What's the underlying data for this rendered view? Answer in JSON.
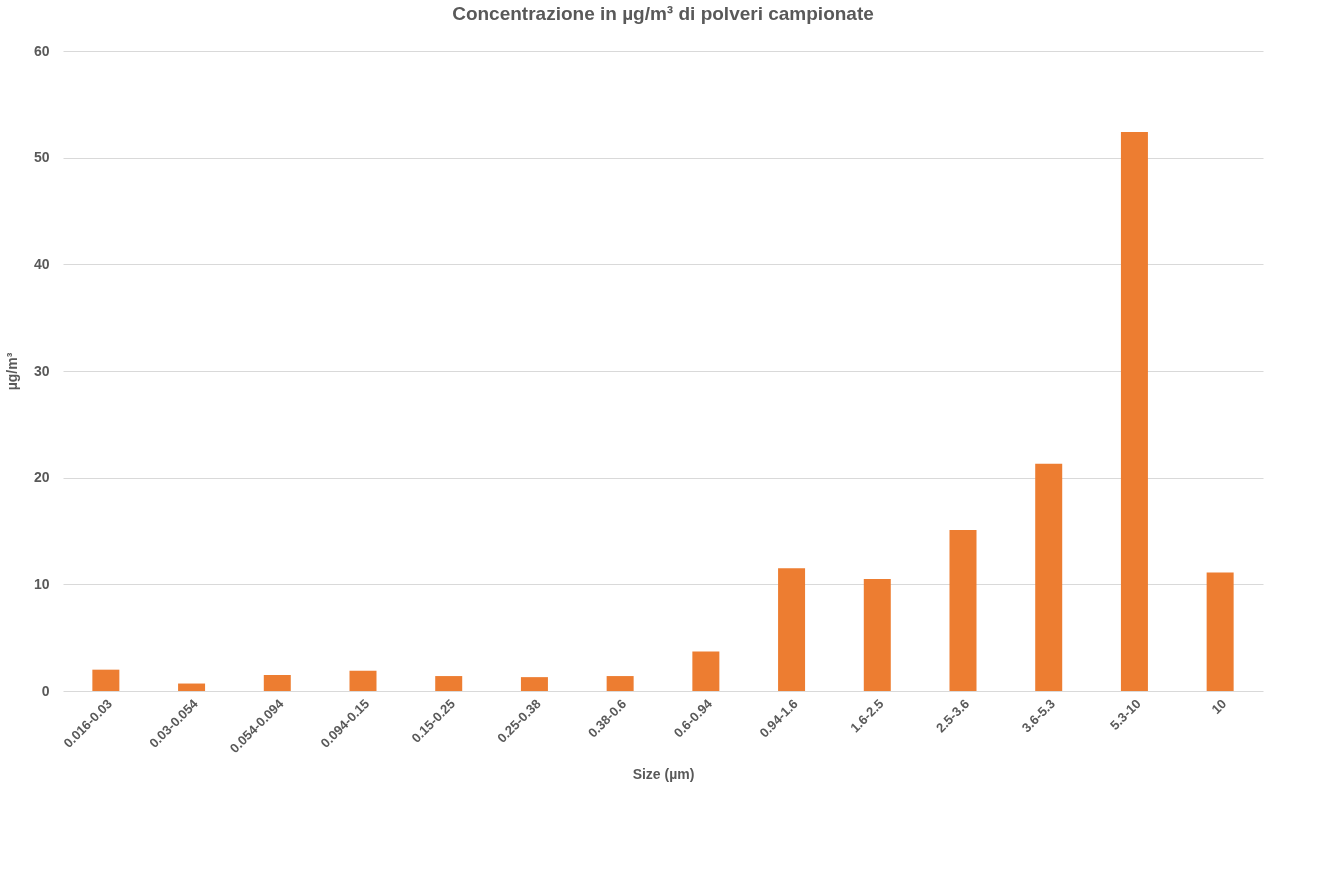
{
  "chart_data": {
    "type": "bar",
    "title": "Concentrazione in µg/m³ di polveri campionate",
    "xlabel": "Size (µm)",
    "ylabel": "µg/m³",
    "categories": [
      "0.016-0.03",
      "0.03-0.054",
      "0.054-0.094",
      "0.094-0.15",
      "0.15-0.25",
      "0.25-0.38",
      "0.38-0.6",
      "0.6-0.94",
      "0.94-1.6",
      "1.6-2.5",
      "2.5-3.6",
      "3.6-5.3",
      "5.3-10",
      "10"
    ],
    "values": [
      2.0,
      0.7,
      1.5,
      1.9,
      1.4,
      1.3,
      1.4,
      3.7,
      11.5,
      10.5,
      15.1,
      21.3,
      52.4,
      11.1
    ],
    "color": "#ed7d31",
    "ylim": [
      0,
      60
    ],
    "yticks": [
      0,
      10,
      20,
      30,
      40,
      50,
      60
    ],
    "grid": "y"
  }
}
